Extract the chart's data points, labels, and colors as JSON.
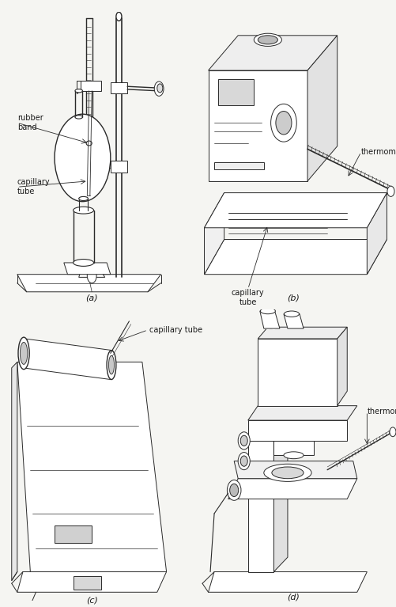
{
  "background_color": "#f5f5f2",
  "line_color": "#2a2a2a",
  "label_color": "#1a1a1a",
  "labels": {
    "a": "(a)",
    "b": "(b)",
    "c": "(c)",
    "d": "(d)",
    "rubber_band": "rubber\nband",
    "capillary_tube_a": "capillary\ntube",
    "capillary_tube_b": "capillary\ntube",
    "capillary_tube_c": "capillary tube",
    "thermometer_b": "thermometer",
    "thermometer_d": "thermometer"
  },
  "fig_width": 5.02,
  "fig_height": 7.67,
  "label_fontsize": 8,
  "annot_fontsize": 7
}
